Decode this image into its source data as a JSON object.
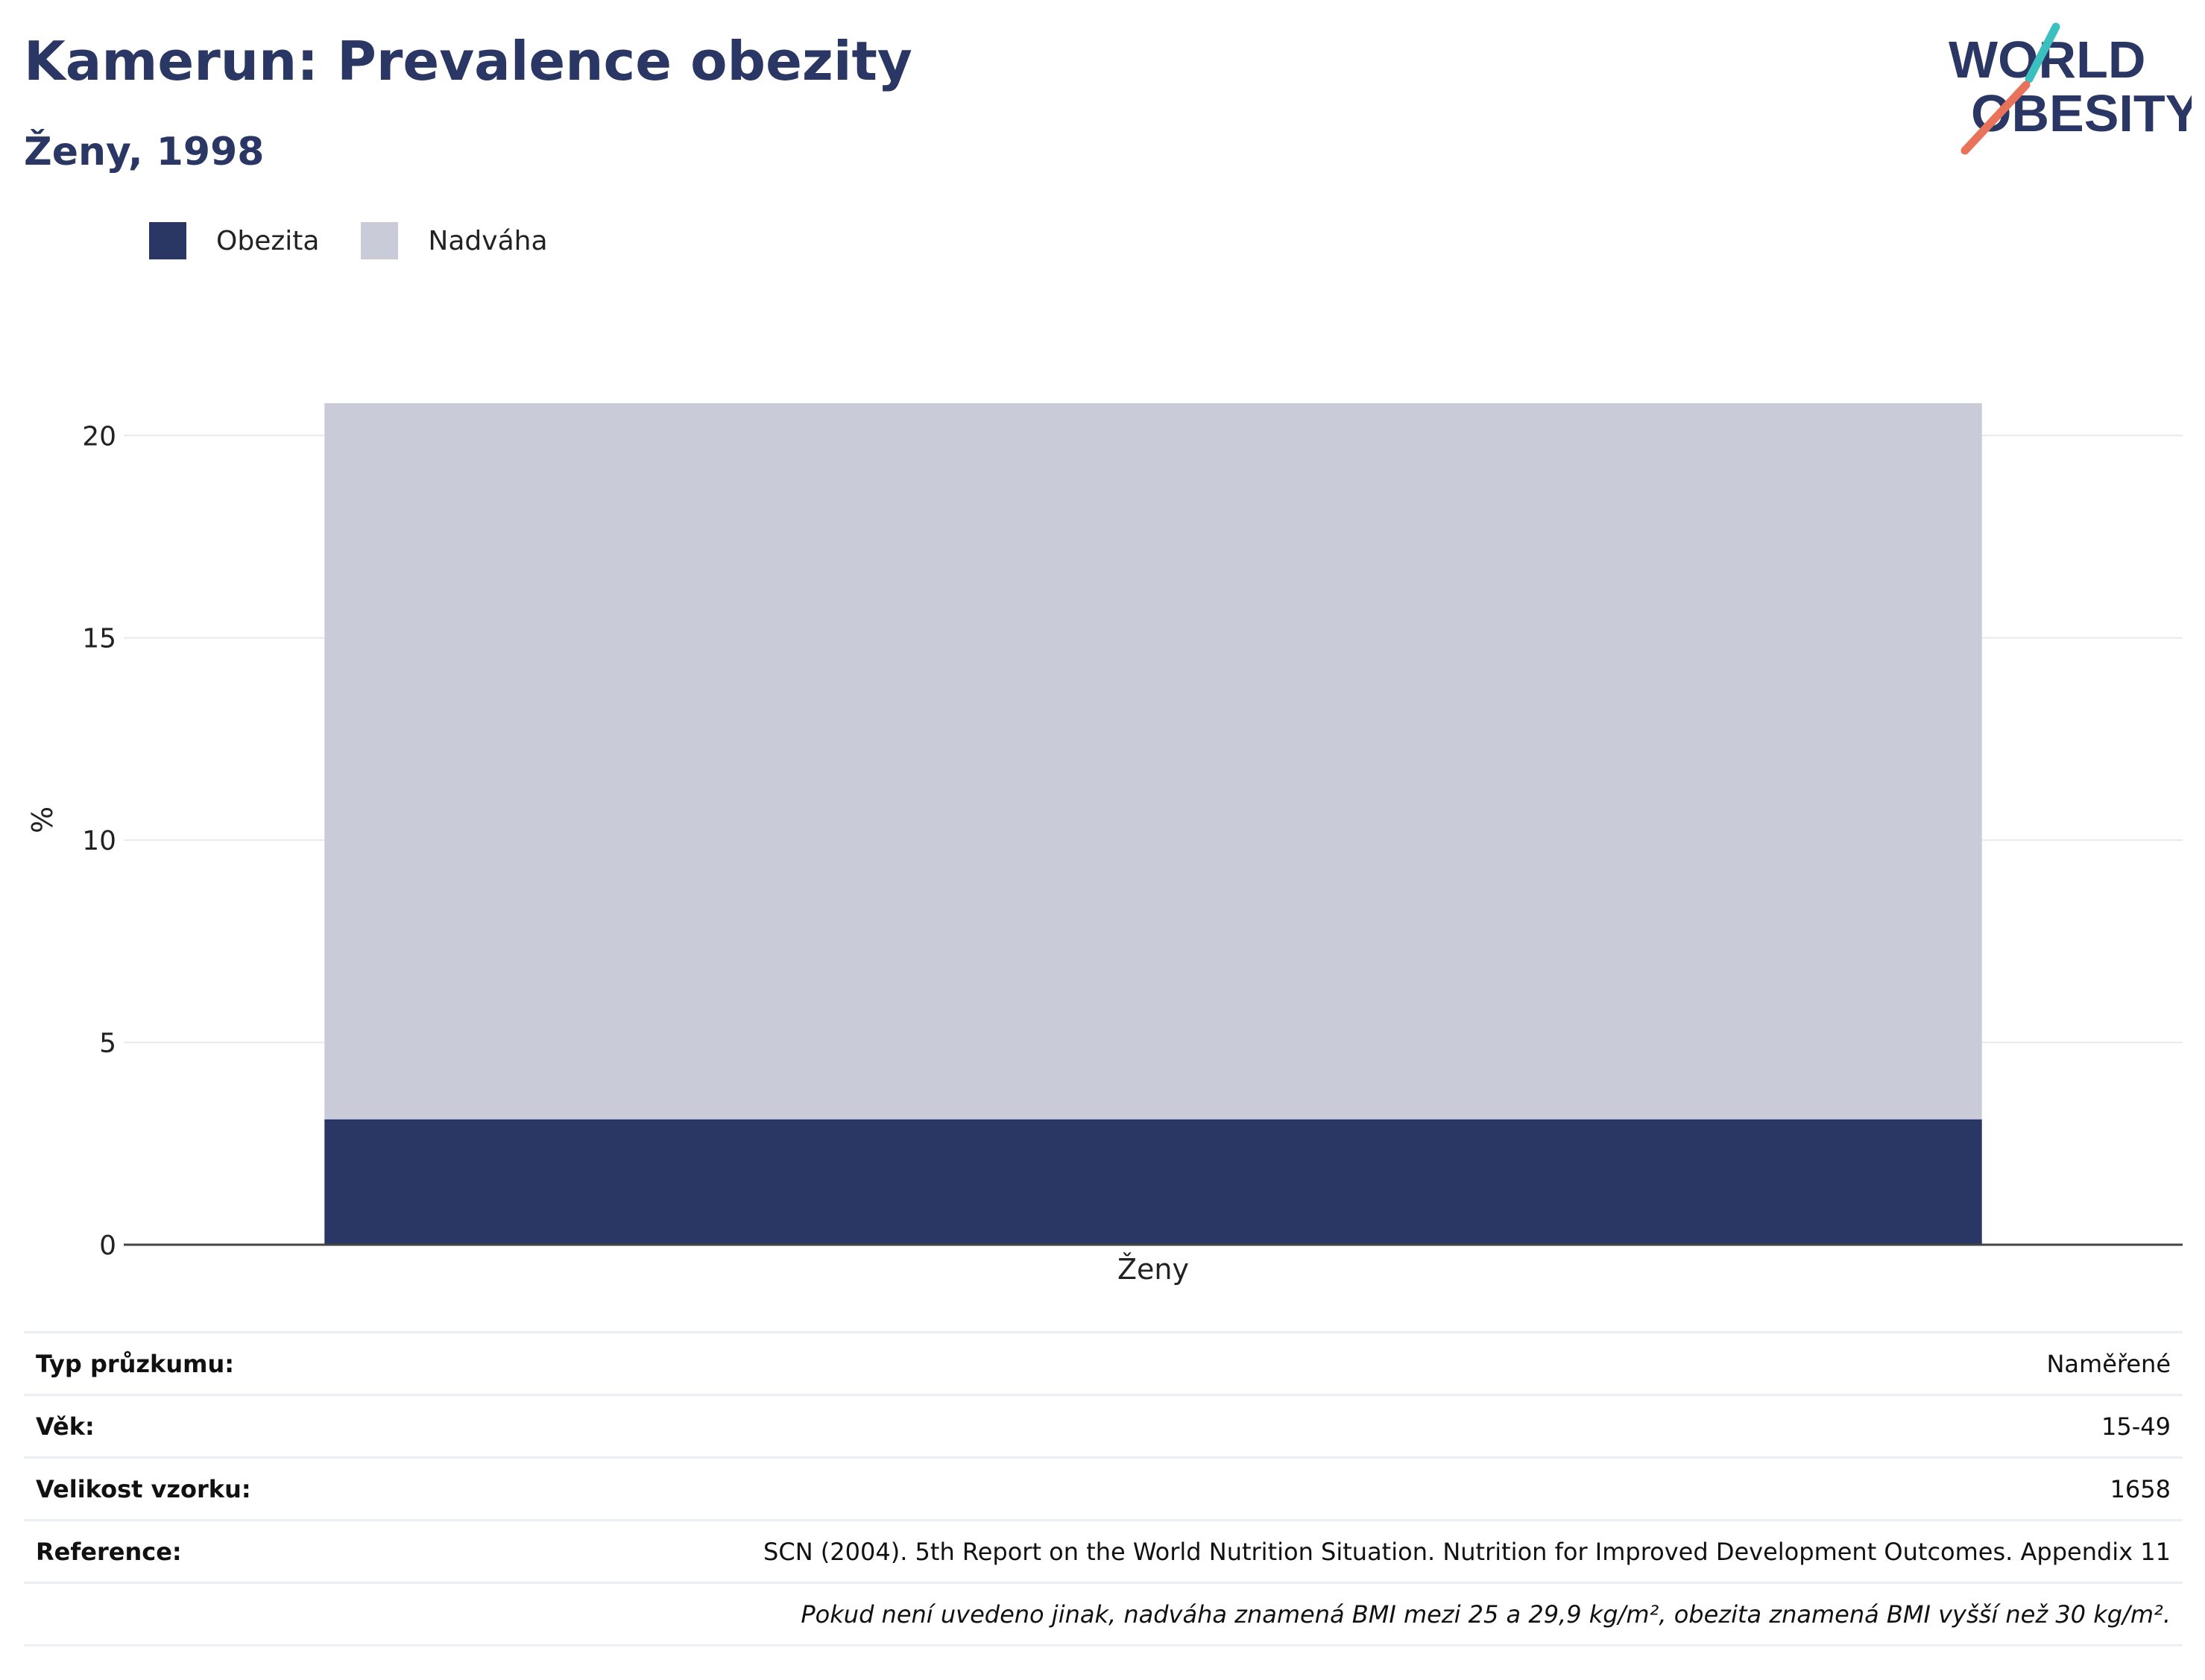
{
  "title": "Kamerun: Prevalence obezity",
  "subtitle": "Ženy, 1998",
  "logo": {
    "line1": "WORLD",
    "line2": "OBESITY",
    "accent_colors": [
      "#3bbfbf",
      "#e8735a"
    ]
  },
  "colors": {
    "obesity": "#2a3663",
    "overweight": "#c9ccd8",
    "title": "#2a3663"
  },
  "legend": [
    {
      "label": "Obezita",
      "color": "#2a3663"
    },
    {
      "label": "Nadváha",
      "color": "#c9ccd8"
    }
  ],
  "chart_data": {
    "type": "bar",
    "stacked": true,
    "categories": [
      "Ženy"
    ],
    "series": [
      {
        "name": "Obezita",
        "values": [
          3.1
        ]
      },
      {
        "name": "Nadváha",
        "values": [
          17.7
        ]
      }
    ],
    "ylabel": "%",
    "ylim": [
      0,
      21
    ],
    "yticks": [
      0,
      5,
      10,
      15,
      20
    ],
    "grid": true,
    "legend_position": "top-left"
  },
  "info": [
    {
      "key": "Typ průzkumu:",
      "value": "Naměřené"
    },
    {
      "key": "Věk:",
      "value": "15-49"
    },
    {
      "key": "Velikost vzorku:",
      "value": "1658"
    },
    {
      "key": "Reference:",
      "value": "SCN (2004). 5th Report on the World Nutrition Situation. Nutrition for Improved Development Outcomes. Appendix 11"
    }
  ],
  "footnote": "Pokud není uvedeno jinak, nadváha znamená BMI mezi 25 a 29,9 kg/m², obezita znamená BMI vyšší než 30 kg/m²."
}
